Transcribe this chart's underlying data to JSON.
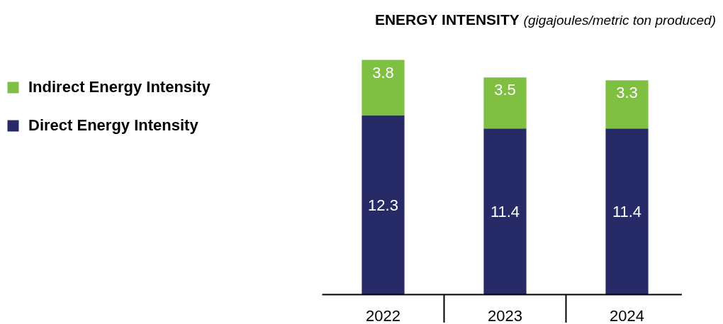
{
  "chart_data": {
    "type": "bar",
    "title": "ENERGY INTENSITY",
    "subtitle": "(gigajoules/metric ton produced)",
    "categories": [
      "2022",
      "2023",
      "2024"
    ],
    "stacked": true,
    "data_labels": true,
    "legend": "left",
    "grid": false,
    "series": [
      {
        "name": "Direct Energy Intensity",
        "color": "#262a66",
        "values": [
          12.3,
          11.4,
          11.4
        ]
      },
      {
        "name": "Indirect Energy Intensity",
        "color": "#7fbf42",
        "values": [
          3.8,
          3.5,
          3.3
        ]
      }
    ]
  }
}
